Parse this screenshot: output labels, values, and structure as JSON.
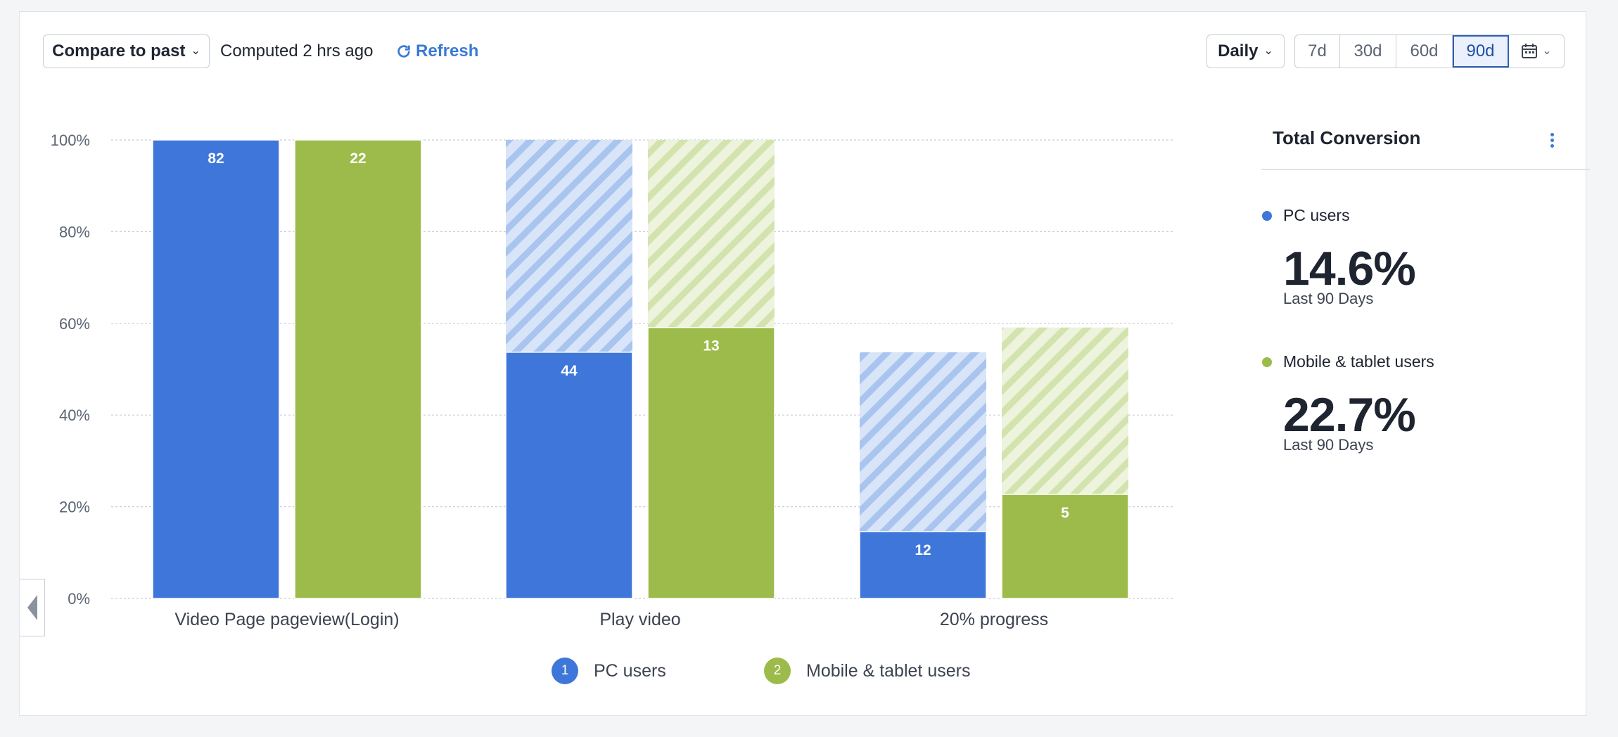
{
  "toolbar": {
    "compare_label": "Compare to past",
    "computed_text": "Computed 2 hrs ago",
    "refresh_label": "Refresh",
    "interval_label": "Daily",
    "ranges": [
      "7d",
      "30d",
      "60d",
      "90d"
    ],
    "active_range": "90d"
  },
  "chart_data": {
    "type": "bar",
    "categories": [
      "Video Page pageview(Login)",
      "Play video",
      "20% progress"
    ],
    "series": [
      {
        "name": "PC users",
        "color": "#3e77d9",
        "values": [
          100,
          53.7,
          14.6
        ],
        "counts": [
          82,
          44,
          12
        ],
        "dropoff_top": [
          100,
          100,
          53.7
        ]
      },
      {
        "name": "Mobile & tablet users",
        "color": "#9cbb4a",
        "values": [
          100,
          59.1,
          22.7
        ],
        "counts": [
          22,
          13,
          5
        ],
        "dropoff_top": [
          100,
          100,
          59.1
        ]
      }
    ],
    "yticks": [
      "0%",
      "20%",
      "40%",
      "60%",
      "80%",
      "100%"
    ],
    "ylim": [
      0,
      100
    ],
    "grid": true,
    "legend_position": "bottom-center"
  },
  "legend": [
    {
      "number": "1",
      "label": "PC users",
      "color": "#3e77d9"
    },
    {
      "number": "2",
      "label": "Mobile & tablet users",
      "color": "#9cbb4a"
    }
  ],
  "panel": {
    "title": "Total Conversion",
    "metrics": [
      {
        "name": "PC users",
        "value": "14.6%",
        "sub": "Last 90 Days",
        "color": "#3e77d9"
      },
      {
        "name": "Mobile & tablet users",
        "value": "22.7%",
        "sub": "Last 90 Days",
        "color": "#9cbb4a"
      }
    ]
  },
  "icons": {
    "refresh": "refresh-icon",
    "calendar": "calendar-icon",
    "collapse": "collapse-left-icon",
    "more": "kebab-menu-icon"
  }
}
